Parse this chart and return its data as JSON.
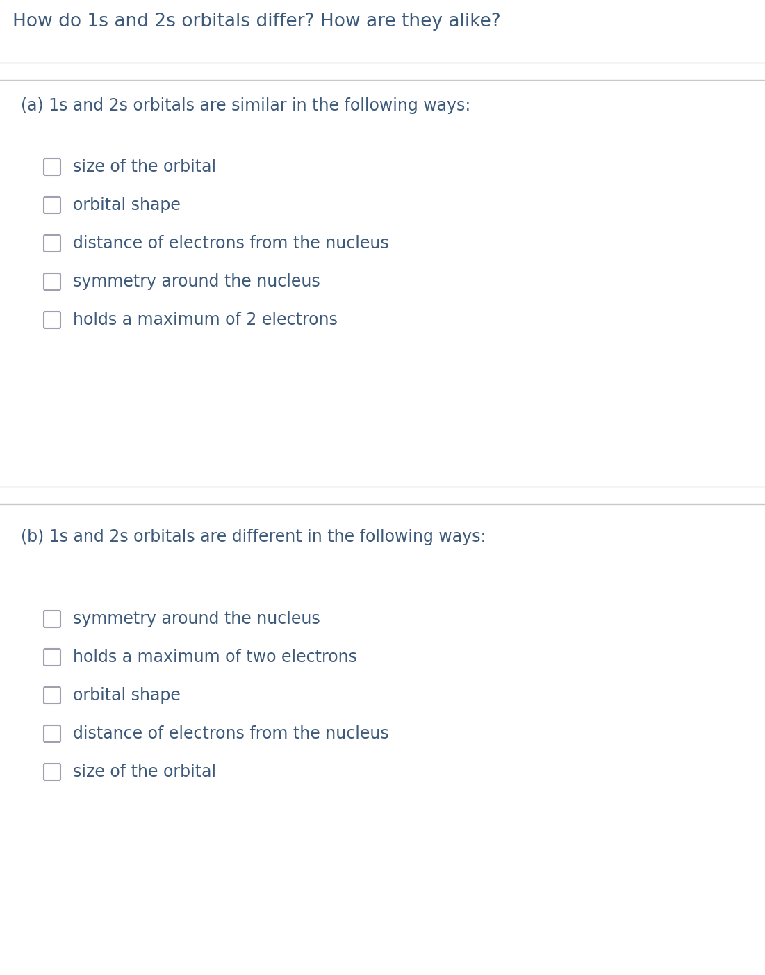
{
  "title": "How do 1s and 2s orbitals differ? How are they alike?",
  "title_color": "#3d5a7a",
  "title_fontsize": 19,
  "bg_color": "#ffffff",
  "divider_color": "#c8c8c8",
  "section_a_header": "(a) 1s and 2s orbitals are similar in the following ways:",
  "section_b_header": "(b) 1s and 2s orbitals are different in the following ways:",
  "header_fontsize": 17,
  "header_color": "#3d5a7a",
  "item_fontsize": 17,
  "item_color": "#3d5a7a",
  "checkbox_edge_color": "#a0a0b0",
  "section_a_items": [
    "size of the orbital",
    "orbital shape",
    "distance of electrons from the nucleus",
    "symmetry around the nucleus",
    "holds a maximum of 2 electrons"
  ],
  "section_b_items": [
    "symmetry around the nucleus",
    "holds a maximum of two electrons",
    "orbital shape",
    "distance of electrons from the nucleus",
    "size of the orbital"
  ],
  "fig_width": 11.01,
  "fig_height": 14.02,
  "dpi": 100
}
